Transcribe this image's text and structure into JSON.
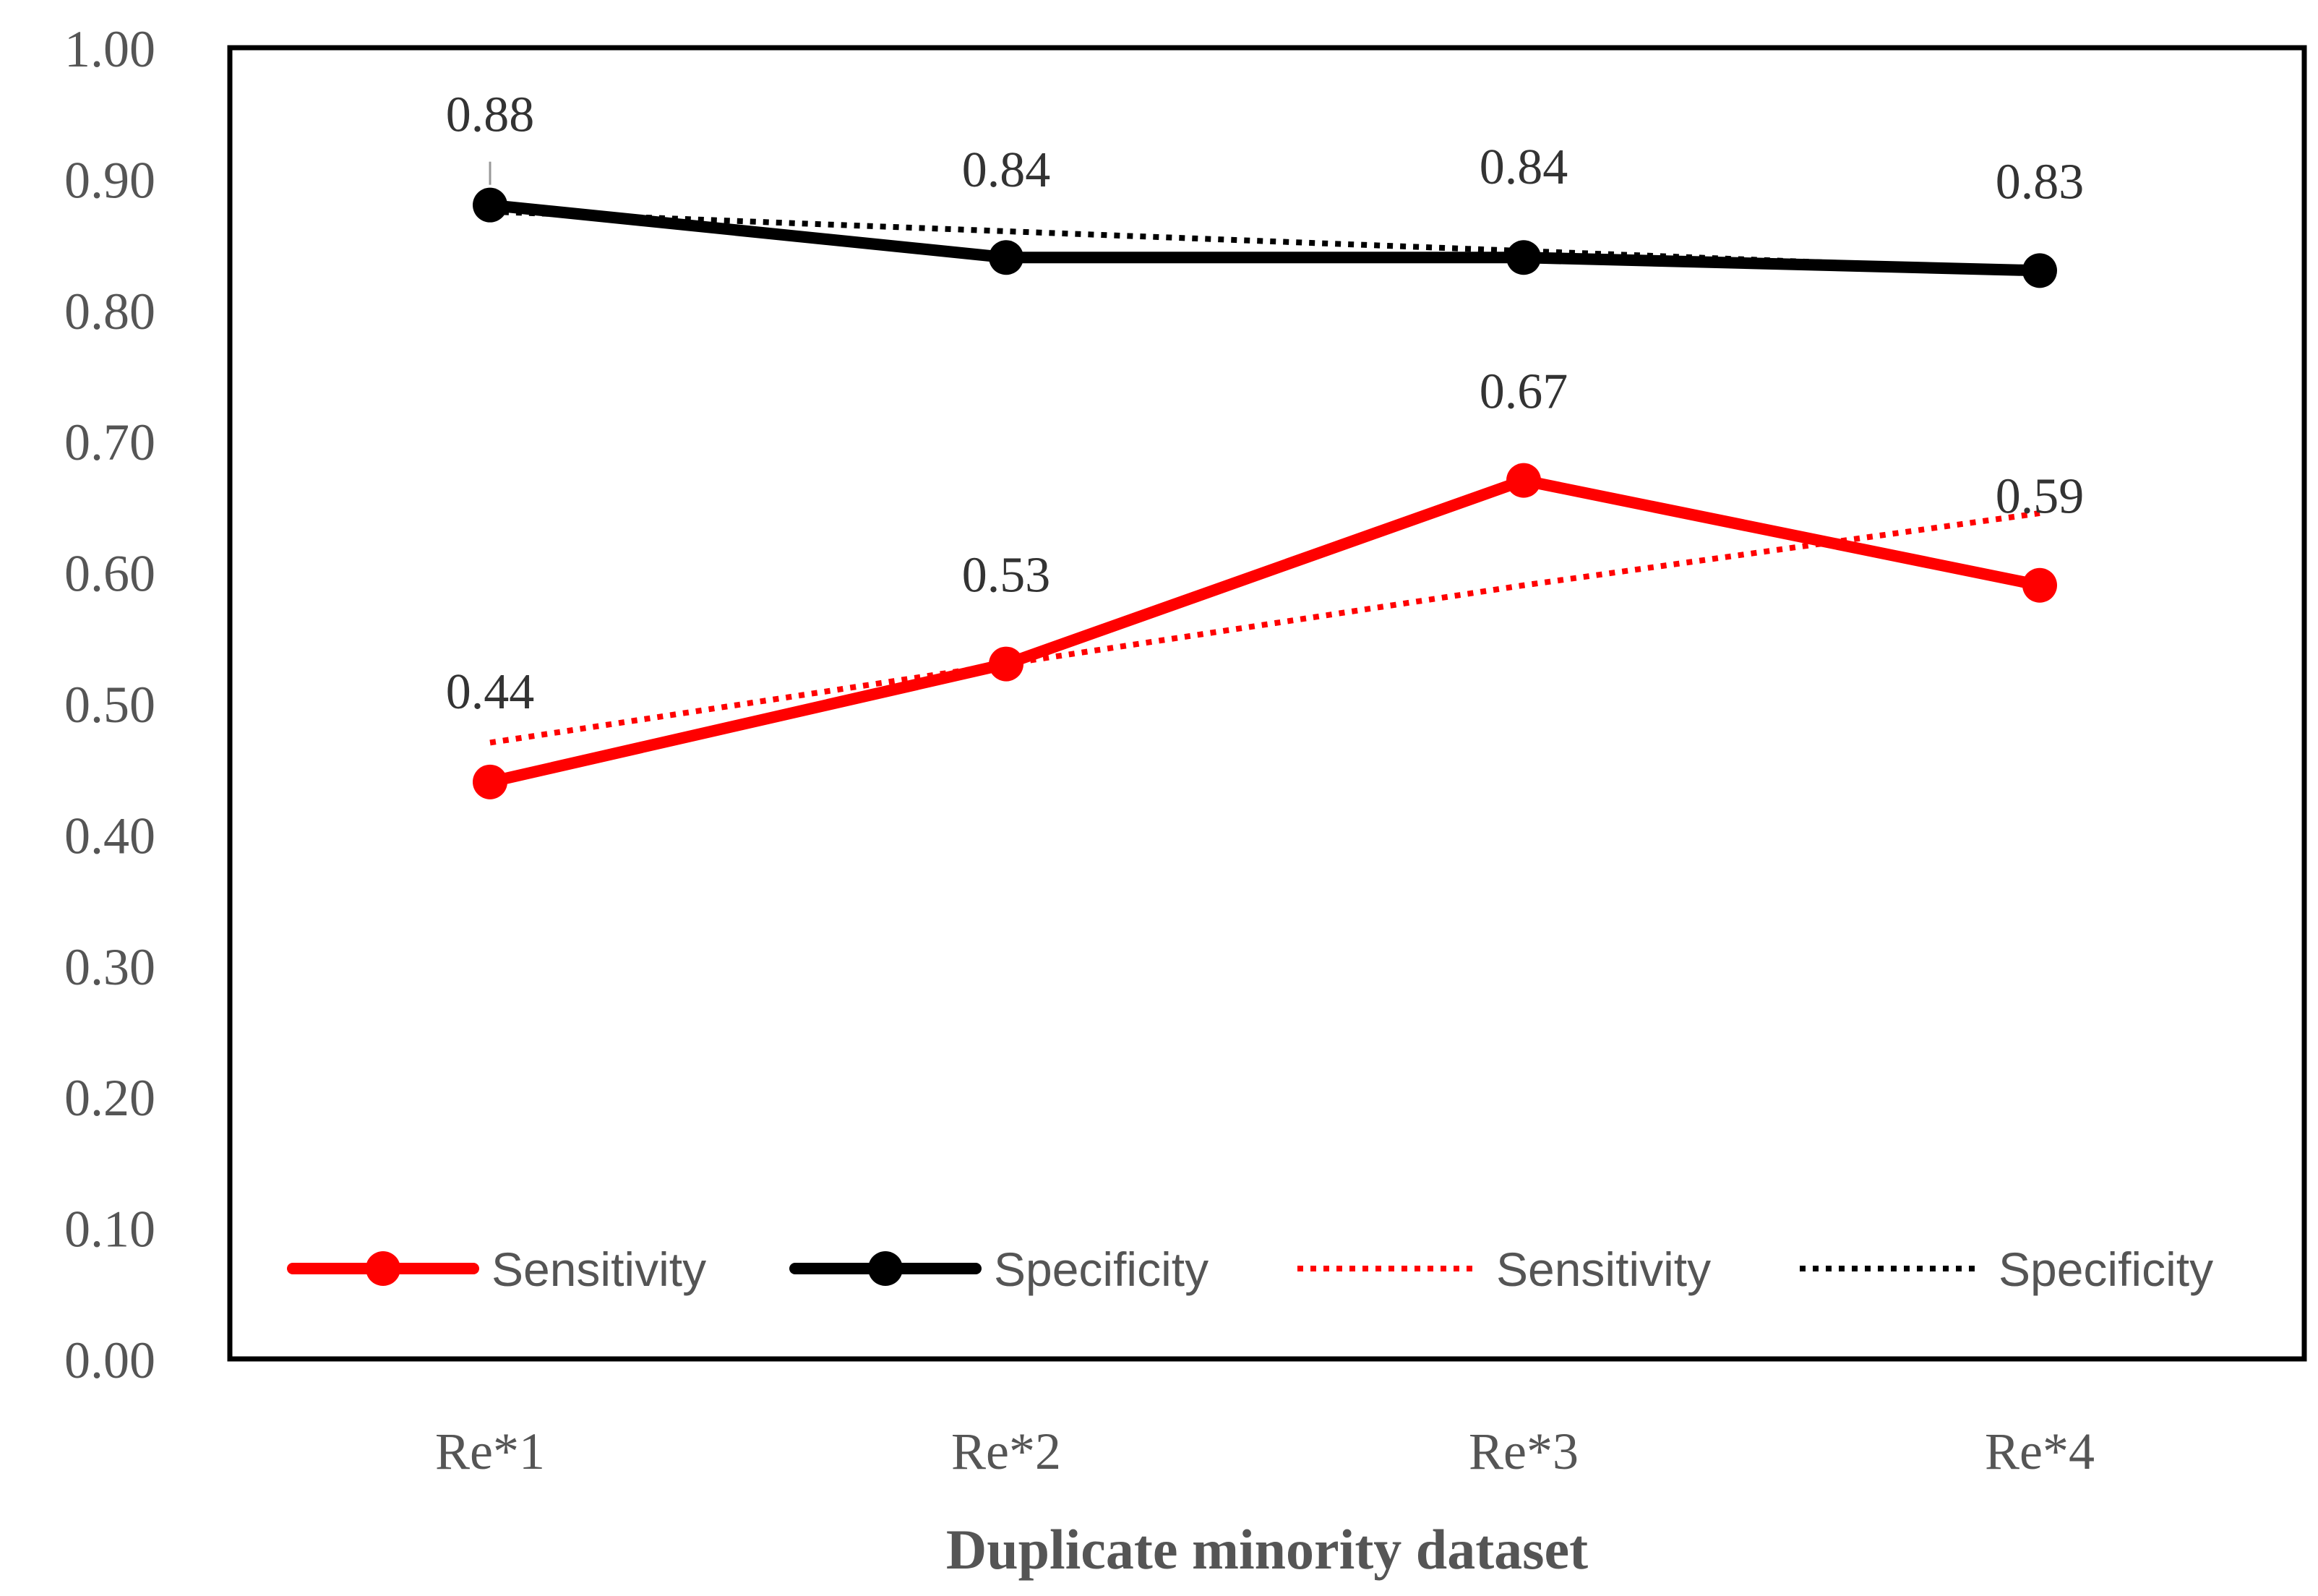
{
  "chart_data": {
    "type": "line",
    "title": "",
    "xlabel": "Duplicate minority dataset",
    "ylabel": "",
    "categories": [
      "Re*1",
      "Re*2",
      "Re*3",
      "Re*4"
    ],
    "ylim": [
      0,
      1
    ],
    "yticks": [
      "0.00",
      "0.10",
      "0.20",
      "0.30",
      "0.40",
      "0.50",
      "0.60",
      "0.70",
      "0.80",
      "0.90",
      "1.00"
    ],
    "grid": false,
    "legend_position": "bottom",
    "series": [
      {
        "name": "Sensitivity",
        "kind": "data",
        "color": "#ff0000",
        "style": "solid",
        "markers": true,
        "values": [
          0.44,
          0.53,
          0.67,
          0.59
        ],
        "labels": [
          "0.44",
          "0.53",
          "0.67",
          "0.59"
        ]
      },
      {
        "name": "Specificity",
        "kind": "data",
        "color": "#000000",
        "style": "solid",
        "markers": true,
        "values": [
          0.88,
          0.84,
          0.84,
          0.83
        ],
        "labels": [
          "0.88",
          "0.84",
          "0.84",
          "0.83"
        ]
      },
      {
        "name": "Sensitivity",
        "kind": "trendline",
        "color": "#ff0000",
        "style": "dotted",
        "markers": false,
        "values": [
          0.47,
          0.53,
          0.59,
          0.645
        ]
      },
      {
        "name": "Specificity",
        "kind": "trendline",
        "color": "#000000",
        "style": "dotted",
        "markers": false,
        "values": [
          0.875,
          0.86,
          0.845,
          0.83
        ]
      }
    ]
  }
}
